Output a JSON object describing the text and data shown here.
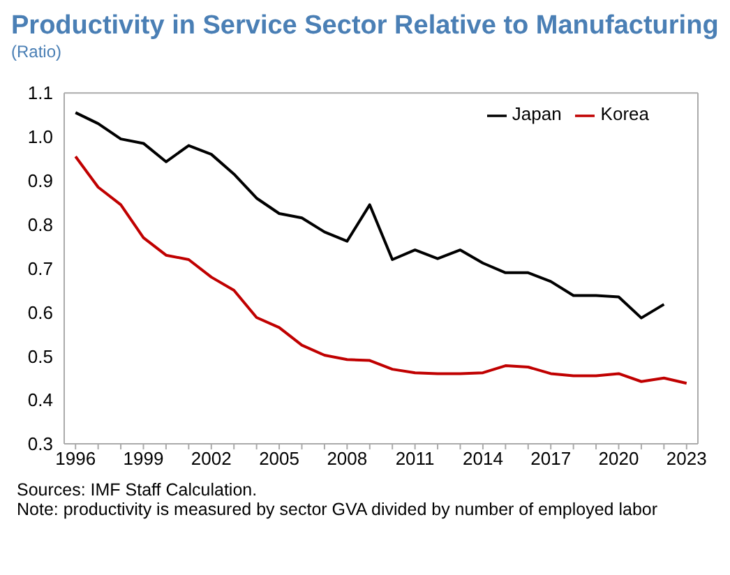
{
  "chart_data": {
    "type": "line",
    "title": "Productivity in Service Sector Relative to Manufacturing",
    "subtitle": "(Ratio)",
    "annotations": [
      "Sources: IMF Staff Calculation.",
      "Note: productivity is measured by sector GVA divided by number of employed labor"
    ],
    "x": [
      1996,
      1997,
      1998,
      1999,
      2000,
      2001,
      2002,
      2003,
      2004,
      2005,
      2006,
      2007,
      2008,
      2009,
      2010,
      2011,
      2012,
      2013,
      2014,
      2015,
      2016,
      2017,
      2018,
      2019,
      2020,
      2021,
      2022,
      2023
    ],
    "series": [
      {
        "name": "Japan",
        "color": "#000000",
        "values": [
          1.055,
          1.03,
          0.995,
          0.985,
          0.943,
          0.98,
          0.96,
          0.915,
          0.86,
          0.825,
          0.815,
          0.783,
          0.762,
          0.845,
          0.72,
          0.742,
          0.722,
          0.742,
          0.712,
          0.69,
          0.69,
          0.67,
          0.638,
          0.638,
          0.635,
          0.587,
          0.618,
          null
        ]
      },
      {
        "name": "Korea",
        "color": "#c00000",
        "values": [
          0.955,
          0.885,
          0.845,
          0.77,
          0.73,
          0.72,
          0.68,
          0.65,
          0.588,
          0.565,
          0.525,
          0.502,
          0.492,
          0.49,
          0.47,
          0.462,
          0.46,
          0.46,
          0.462,
          0.478,
          0.475,
          0.46,
          0.455,
          0.455,
          0.46,
          0.442,
          0.45,
          0.438
        ]
      }
    ],
    "xlim": [
      1995.5,
      2023.5
    ],
    "xticks": [
      1996,
      {
        "value": 1997,
        "label": null
      },
      {
        "value": 1998,
        "label": null
      },
      1999,
      {
        "value": 2000,
        "label": null
      },
      {
        "value": 2001,
        "label": null
      },
      2002,
      {
        "value": 2003,
        "label": null
      },
      {
        "value": 2004,
        "label": null
      },
      2005,
      {
        "value": 2006,
        "label": null
      },
      {
        "value": 2007,
        "label": null
      },
      2008,
      {
        "value": 2009,
        "label": null
      },
      {
        "value": 2010,
        "label": null
      },
      2011,
      {
        "value": 2012,
        "label": null
      },
      {
        "value": 2013,
        "label": null
      },
      2014,
      {
        "value": 2015,
        "label": null
      },
      {
        "value": 2016,
        "label": null
      },
      2017,
      {
        "value": 2018,
        "label": null
      },
      {
        "value": 2019,
        "label": null
      },
      2020,
      {
        "value": 2021,
        "label": null
      },
      {
        "value": 2022,
        "label": null
      },
      2023
    ],
    "ylim": [
      0.3,
      1.1
    ],
    "yticks": [
      {
        "value": 0.3,
        "label": "0.3"
      },
      {
        "value": 0.4,
        "label": "0.4"
      },
      {
        "value": 0.5,
        "label": "0.5"
      },
      {
        "value": 0.6,
        "label": "0.6"
      },
      {
        "value": 0.7,
        "label": "0.7"
      },
      {
        "value": 0.8,
        "label": "0.8"
      },
      {
        "value": 0.9,
        "label": "0.9"
      },
      {
        "value": 1.0,
        "label": "1.0"
      },
      {
        "value": 1.1,
        "label": "1.1"
      }
    ],
    "legend": "top right",
    "marker": "none",
    "line_style": "solid",
    "grid": false
  }
}
